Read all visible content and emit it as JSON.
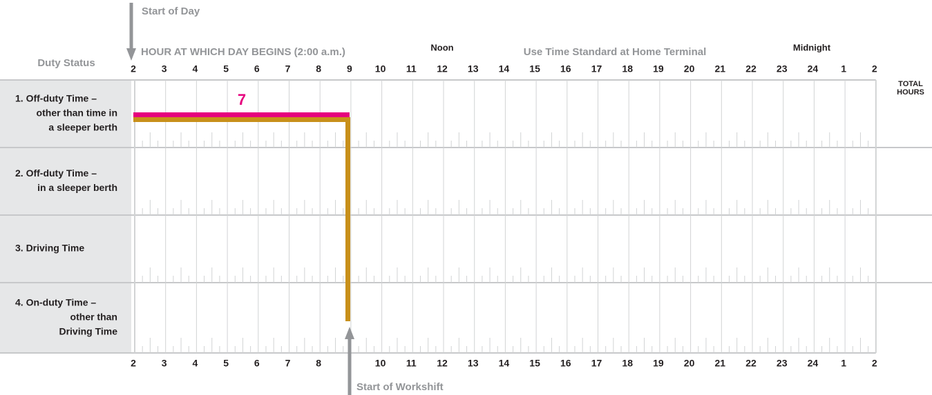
{
  "start_of_day": "Start of Day",
  "duty_status": "Duty Status",
  "day_begins": "HOUR AT WHICH DAY BEGINS (2:00 a.m.)",
  "noon": "Noon",
  "time_standard": "Use Time Standard at Home Terminal",
  "midnight": "Midnight",
  "total_hours": [
    "TOTAL",
    "HOURS"
  ],
  "hours": [
    "2",
    "3",
    "4",
    "5",
    "6",
    "7",
    "8",
    "9",
    "10",
    "11",
    "12",
    "13",
    "14",
    "15",
    "16",
    "17",
    "18",
    "19",
    "20",
    "21",
    "22",
    "23",
    "24",
    "1",
    "2"
  ],
  "bottom_hours": [
    "2",
    "3",
    "4",
    "5",
    "6",
    "7",
    "8",
    null,
    "10",
    "11",
    "12",
    "13",
    "14",
    "15",
    "16",
    "17",
    "18",
    "19",
    "20",
    "21",
    "22",
    "23",
    "24",
    "1",
    "2"
  ],
  "rows": [
    {
      "lines": [
        "1. Off-duty Time –",
        "other than time in",
        "a sleeper berth"
      ]
    },
    {
      "lines": [
        "2. Off-duty Time –",
        "in a sleeper berth"
      ]
    },
    {
      "lines": [
        "3. Driving Time"
      ]
    },
    {
      "lines": [
        "4. On-duty Time –",
        "other than",
        "Driving Time"
      ]
    }
  ],
  "segment_label": "7",
  "start_of_workshift": "Start of Workshift"
}
